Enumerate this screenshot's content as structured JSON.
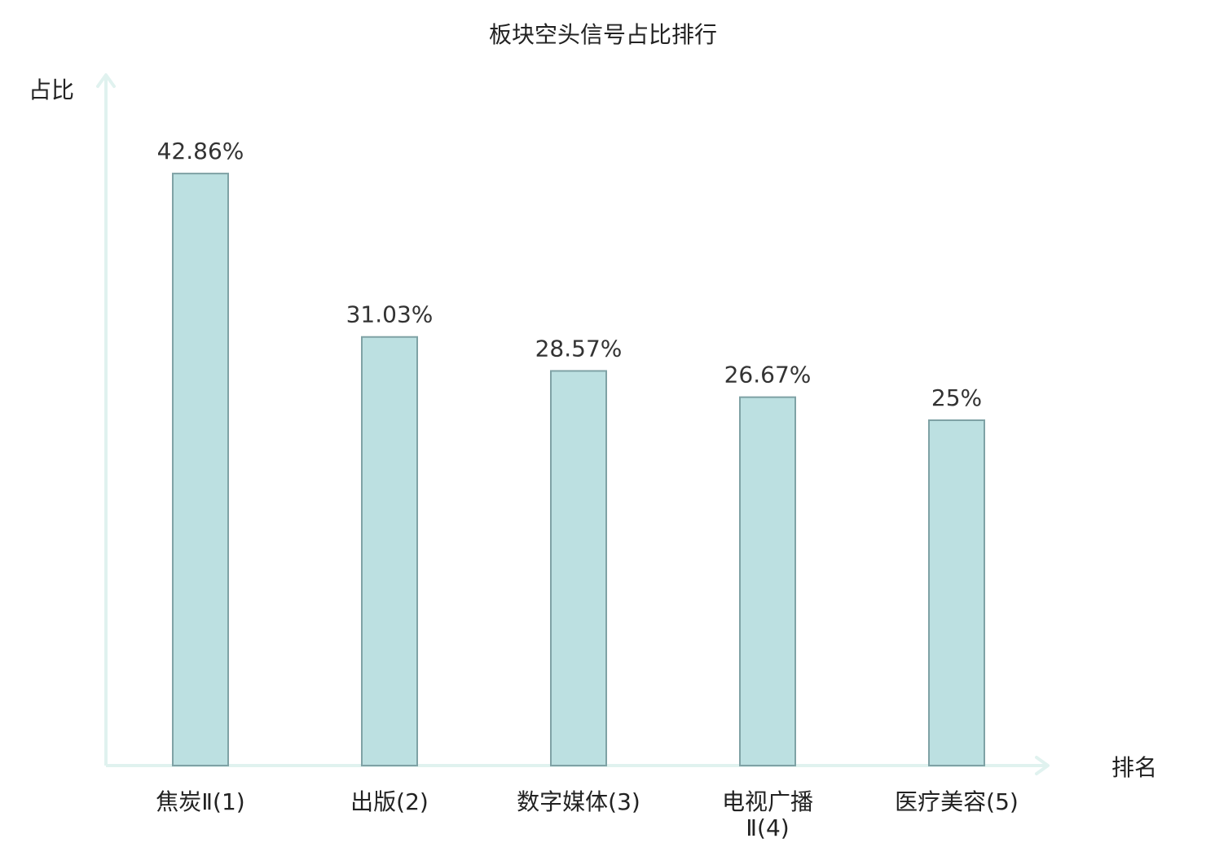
{
  "chart_data": {
    "type": "bar",
    "title": "板块空头信号占比排行",
    "xlabel": "排名",
    "ylabel": "占比",
    "categories": [
      [
        "焦炭Ⅱ(1)"
      ],
      [
        "出版(2)"
      ],
      [
        "数字媒体(3)"
      ],
      [
        "电视广播",
        "Ⅱ(4)"
      ],
      [
        "医疗美容(5)"
      ]
    ],
    "values": [
      42.86,
      31.03,
      28.57,
      26.67,
      25
    ],
    "value_labels": [
      "42.86%",
      "31.03%",
      "28.57%",
      "26.67%",
      "25%"
    ],
    "highlight_index": 3,
    "ylim": [
      0,
      50
    ],
    "grid": false,
    "colors": {
      "bar_fill": "#bce0e1",
      "bar_stroke": "#7fa2a5",
      "axis": "#e0f2ef",
      "text": "#222222",
      "value_text": "#333333",
      "highlight": "#e8262b"
    }
  }
}
